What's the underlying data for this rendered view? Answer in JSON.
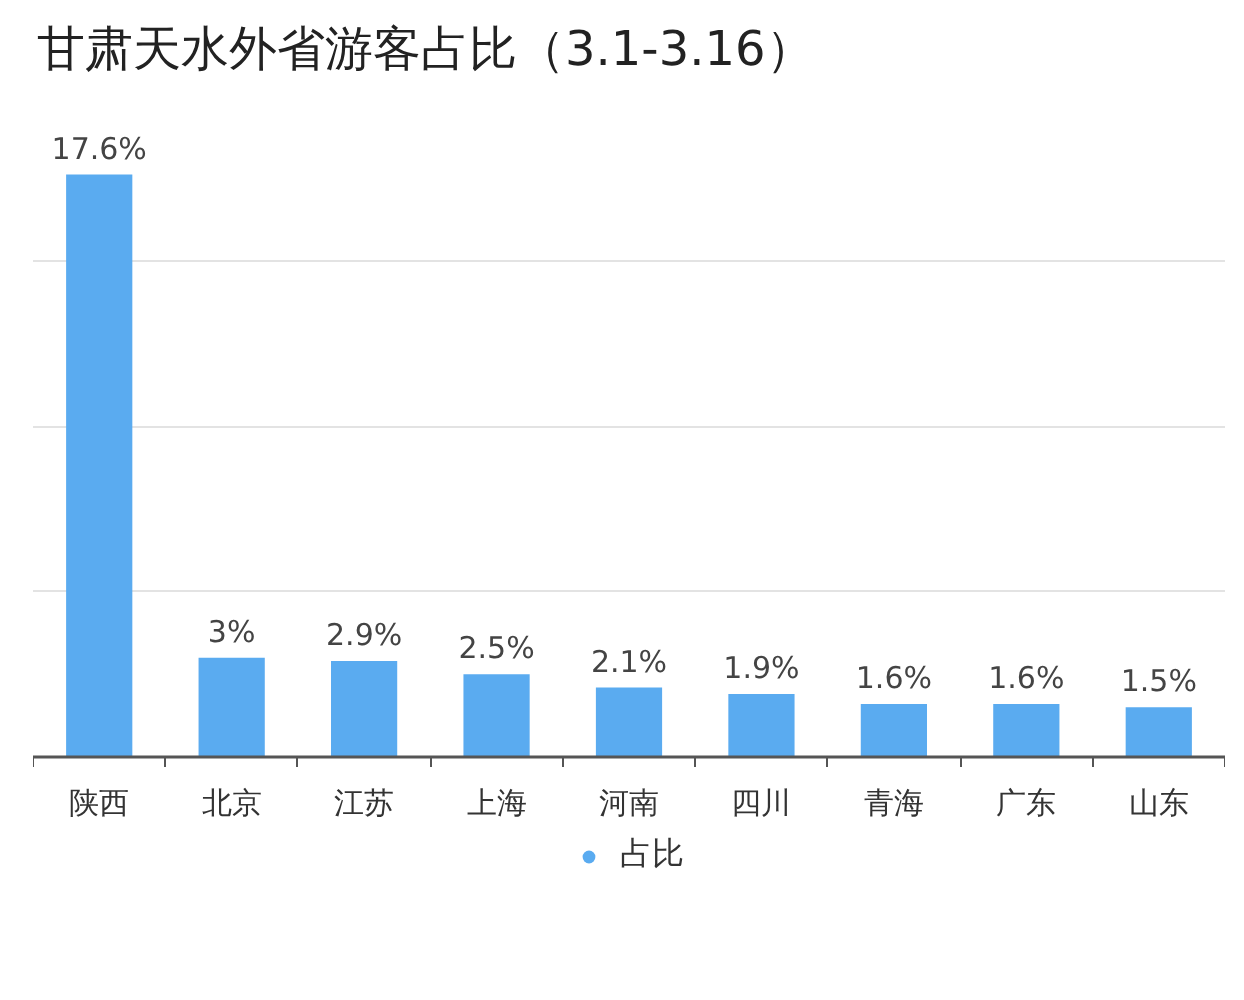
{
  "chart_data": {
    "type": "bar",
    "title": "甘肃天水外省游客占比（3.1-3.16）",
    "categories": [
      "陕西",
      "北京",
      "江苏",
      "上海",
      "河南",
      "四川",
      "青海",
      "广东",
      "山东"
    ],
    "series": [
      {
        "name": "占比",
        "color": "#5aabf0",
        "values": [
          17.6,
          3,
          2.9,
          2.5,
          2.1,
          1.9,
          1.6,
          1.6,
          1.5
        ],
        "value_labels": [
          "17.6%",
          "3%",
          "2.9%",
          "2.5%",
          "2.1%",
          "1.9%",
          "1.6%",
          "1.6%",
          "1.5%"
        ]
      }
    ],
    "yticks": [
      {
        "value": 5,
        "label": null
      },
      {
        "value": 10,
        "label": null
      },
      {
        "value": 15,
        "label": null
      }
    ],
    "grid": "y",
    "legend": "bottom",
    "tick_labels": "x",
    "marker": "circle"
  }
}
